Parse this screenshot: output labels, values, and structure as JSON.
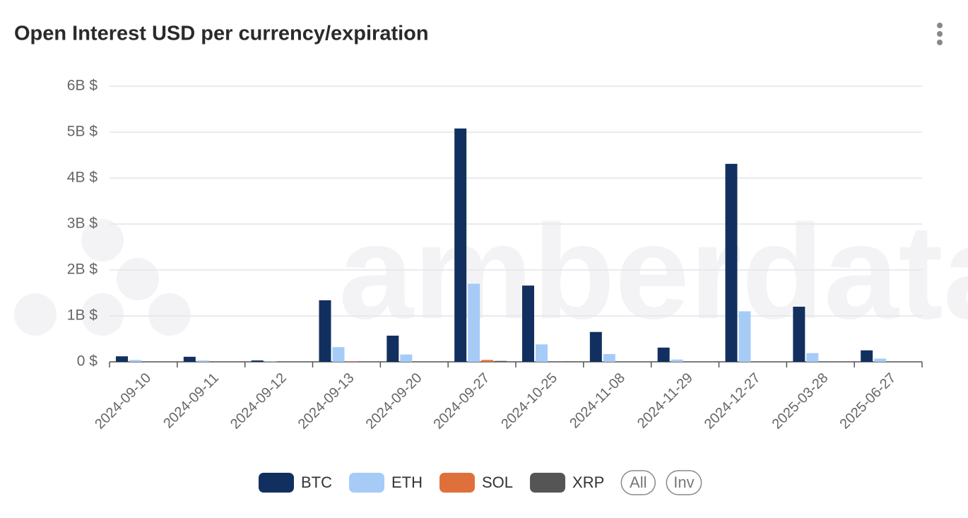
{
  "chart_data": {
    "type": "bar",
    "title": "Open Interest USD per currency/expiration",
    "watermark": "amberdata",
    "categories": [
      "2024-09-10",
      "2024-09-11",
      "2024-09-12",
      "2024-09-13",
      "2024-09-20",
      "2024-09-27",
      "2024-10-25",
      "2024-11-08",
      "2024-11-29",
      "2024-12-27",
      "2025-03-28",
      "2025-06-27"
    ],
    "series": [
      {
        "name": "BTC",
        "color": "#12305f",
        "values": [
          120000000,
          110000000,
          30000000,
          1340000000,
          570000000,
          5080000000,
          1660000000,
          650000000,
          310000000,
          4310000000,
          1200000000,
          250000000
        ]
      },
      {
        "name": "ETH",
        "color": "#a6cbf7",
        "values": [
          40000000,
          30000000,
          10000000,
          320000000,
          160000000,
          1700000000,
          380000000,
          170000000,
          50000000,
          1100000000,
          190000000,
          70000000
        ]
      },
      {
        "name": "SOL",
        "color": "#e0703b",
        "values": [
          0,
          0,
          0,
          10000000,
          0,
          40000000,
          0,
          0,
          0,
          0,
          0,
          0
        ]
      },
      {
        "name": "XRP",
        "color": "#555555",
        "values": [
          0,
          0,
          0,
          0,
          0,
          20000000,
          10000000,
          0,
          0,
          0,
          0,
          0
        ]
      }
    ],
    "ylim": [
      0,
      6000000000
    ],
    "yticks": [
      {
        "value": 0,
        "label": "0 $"
      },
      {
        "value": 1000000000,
        "label": "1B $"
      },
      {
        "value": 2000000000,
        "label": "2B $"
      },
      {
        "value": 3000000000,
        "label": "3B $"
      },
      {
        "value": 4000000000,
        "label": "4B $"
      },
      {
        "value": 5000000000,
        "label": "5B $"
      },
      {
        "value": 6000000000,
        "label": "6B $"
      }
    ],
    "grid": true,
    "legend_buttons": [
      "All",
      "Inv"
    ]
  }
}
